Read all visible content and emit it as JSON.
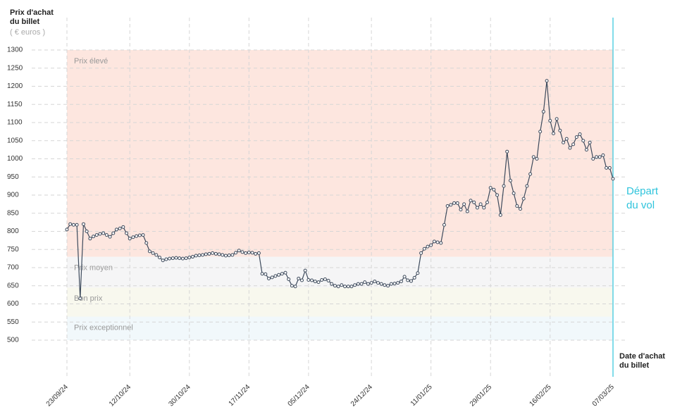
{
  "chart_data": {
    "type": "line",
    "y_label": "Prix d'achat du billet",
    "y_unit": "( € euros )",
    "x_label": "Date d'achat du billet",
    "annotation": "Départ du vol",
    "color": "#3d4a5c",
    "categories": [
      "23/09/24",
      null,
      null,
      null,
      null,
      null,
      null,
      null,
      null,
      null,
      null,
      null,
      null,
      null,
      null,
      null,
      null,
      null,
      null,
      "12/10/24",
      null,
      null,
      null,
      null,
      null,
      null,
      null,
      null,
      null,
      null,
      null,
      null,
      null,
      null,
      null,
      null,
      null,
      "30/10/24",
      null,
      null,
      null,
      null,
      null,
      null,
      null,
      null,
      null,
      null,
      null,
      null,
      null,
      null,
      null,
      null,
      null,
      "17/11/24",
      null,
      null,
      null,
      null,
      null,
      null,
      null,
      null,
      null,
      null,
      null,
      null,
      null,
      null,
      null,
      null,
      null,
      "05/12/24",
      null,
      null,
      null,
      null,
      null,
      null,
      null,
      null,
      null,
      null,
      null,
      null,
      null,
      null,
      null,
      null,
      null,
      null,
      "24/12/24",
      null,
      null,
      null,
      null,
      null,
      null,
      null,
      null,
      null,
      null,
      null,
      null,
      null,
      null,
      null,
      null,
      null,
      "11/01/25",
      null,
      null,
      null,
      null,
      null,
      null,
      null,
      null,
      null,
      null,
      null,
      null,
      null,
      null,
      null,
      null,
      null,
      "29/01/25",
      null,
      null,
      null,
      null,
      null,
      null,
      null,
      null,
      null,
      null,
      null,
      null,
      null,
      null,
      null,
      null,
      null,
      "16/02/25",
      null,
      null,
      null,
      null,
      null,
      null,
      null,
      null,
      null,
      null,
      null,
      null,
      null,
      null,
      null,
      null,
      null,
      null,
      "07/03/25"
    ],
    "values": [
      805,
      820,
      818,
      818,
      615,
      820,
      800,
      780,
      786,
      790,
      793,
      795,
      790,
      785,
      795,
      805,
      808,
      812,
      795,
      780,
      784,
      787,
      789,
      790,
      768,
      745,
      740,
      735,
      728,
      720,
      723,
      725,
      726,
      727,
      726,
      725,
      726,
      728,
      730,
      733,
      734,
      735,
      737,
      738,
      740,
      738,
      737,
      735,
      733,
      734,
      735,
      741,
      747,
      743,
      740,
      742,
      741,
      738,
      740,
      683,
      682,
      670,
      673,
      677,
      680,
      683,
      686,
      668,
      650,
      648,
      670,
      665,
      692,
      666,
      665,
      662,
      660,
      666,
      668,
      664,
      655,
      650,
      648,
      652,
      648,
      648,
      648,
      652,
      655,
      655,
      660,
      655,
      658,
      662,
      658,
      655,
      652,
      650,
      655,
      656,
      658,
      662,
      675,
      665,
      663,
      672,
      685,
      740,
      752,
      758,
      762,
      772,
      770,
      768,
      818,
      870,
      873,
      878,
      878,
      860,
      875,
      855,
      885,
      880,
      865,
      875,
      865,
      880,
      920,
      915,
      900,
      845,
      925,
      1020,
      940,
      905,
      870,
      862,
      890,
      925,
      958,
      1005,
      1000,
      1075,
      1130,
      1215,
      1105,
      1070,
      1110,
      1078,
      1045,
      1055,
      1030,
      1040,
      1060,
      1068,
      1050,
      1025,
      1045,
      1000,
      1005,
      1005,
      1010,
      975,
      975,
      945
    ],
    "zones": [
      {
        "label": "Prix élevé",
        "from": 730,
        "to": 1300,
        "color": "#fde6df"
      },
      {
        "label": "Prix moyen",
        "from": 645,
        "to": 730,
        "color": "#f5f5f6"
      },
      {
        "label": "Bon prix",
        "from": 565,
        "to": 645,
        "color": "#f8f8ee"
      },
      {
        "label": "Prix exceptionnel",
        "from": 500,
        "to": 565,
        "color": "#f1f8fb"
      }
    ],
    "ylim": [
      500,
      1300
    ],
    "yticks": [
      500,
      550,
      600,
      650,
      700,
      750,
      800,
      850,
      900,
      950,
      1000,
      1050,
      1100,
      1150,
      1200,
      1250,
      1300
    ],
    "grid": true
  }
}
